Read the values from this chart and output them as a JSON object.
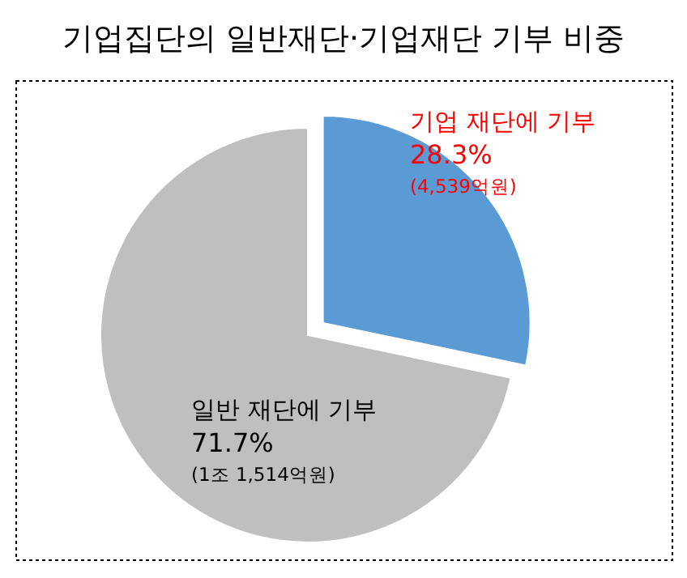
{
  "chart_data": {
    "type": "pie",
    "title": "기업집단의 일반재단·기업재단 기부 비중",
    "categories": [
      "기업 재단에 기부",
      "일반 재단에 기부"
    ],
    "values": [
      28.3,
      71.7
    ],
    "colors": [
      "#5b9bd5",
      "#bfbfbf"
    ],
    "value_labels": [
      "28.3%",
      "71.7%"
    ],
    "annotations": [
      "(4,539억원)",
      "(1조 1,514억원)"
    ],
    "legend": false
  }
}
